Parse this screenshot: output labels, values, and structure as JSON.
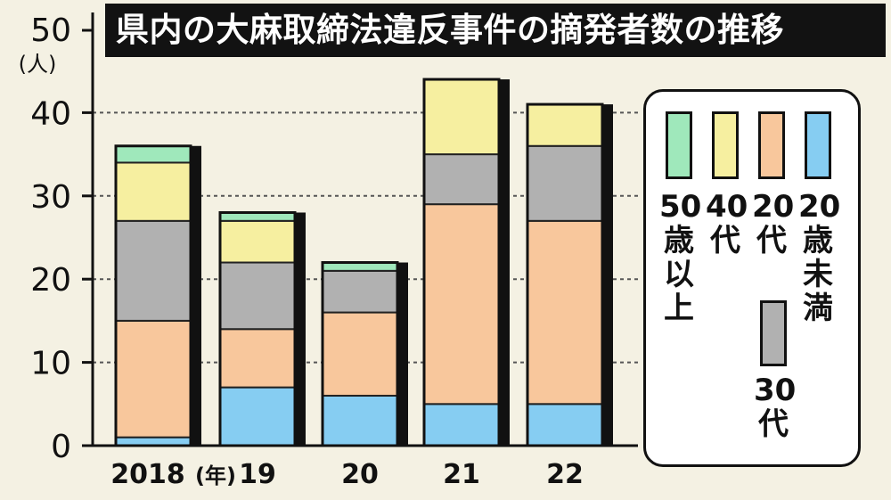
{
  "chart_data": {
    "type": "bar",
    "stacked": true,
    "title": "県内の大麻取締法違反事件の摘発者数の推移",
    "ylabel_top": "50",
    "yunit": "(人)",
    "xunit": "(年)",
    "categories": [
      "2018",
      "19",
      "20",
      "21",
      "22"
    ],
    "y_ticks": [
      "0",
      "10",
      "20",
      "30",
      "40"
    ],
    "ylim": [
      0,
      50
    ],
    "grid": true,
    "legend_position": "right",
    "series": [
      {
        "key": "under20",
        "name": "20歳未満",
        "color": "#86cdf2",
        "values": [
          1,
          7,
          6,
          5,
          5
        ]
      },
      {
        "key": "s20",
        "name": "20代",
        "color": "#f8c79c",
        "values": [
          14,
          7,
          10,
          24,
          22
        ]
      },
      {
        "key": "s30",
        "name": "30代",
        "color": "#b1b1b1",
        "values": [
          12,
          8,
          5,
          6,
          9
        ]
      },
      {
        "key": "s40",
        "name": "40代",
        "color": "#f6efa0",
        "values": [
          7,
          5,
          0,
          9,
          5
        ]
      },
      {
        "key": "over50",
        "name": "50歳以上",
        "color": "#9fe8bb",
        "values": [
          2,
          1,
          1,
          0,
          0
        ]
      }
    ]
  },
  "legend": {
    "over50": "50\n歳\n以\n上",
    "s40": "40\n代",
    "s20": "20\n代",
    "under20": "20\n歳\n未\n満",
    "s30": "30\n代"
  }
}
